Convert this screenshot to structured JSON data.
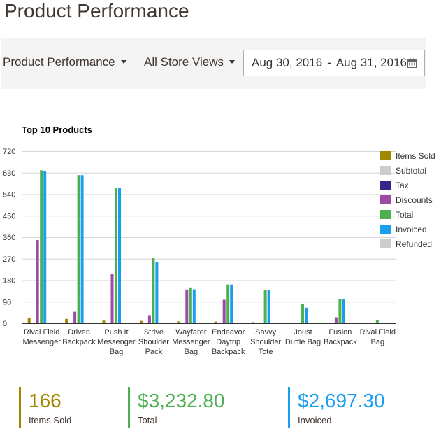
{
  "page": {
    "title": "Product Performance"
  },
  "toolbar": {
    "report_select": "Product Performance",
    "store_select": "All Store Views",
    "date_from": "Aug 30, 2016",
    "date_sep": "-",
    "date_to": "Aug 31, 2016",
    "calendar_icon": "calendar-icon"
  },
  "chart_data": {
    "type": "bar",
    "title": "Top 10 Products",
    "categories": [
      [
        "Rival Field",
        "Messenger"
      ],
      [
        "Driven",
        "Backpack"
      ],
      [
        "Push It",
        "Messenger",
        "Bag"
      ],
      [
        "Strive",
        "Shoulder",
        "Pack"
      ],
      [
        "Wayfarer",
        "Messenger",
        "Bag"
      ],
      [
        "Endeavor",
        "Daytrip",
        "Backpack"
      ],
      [
        "Savvy",
        "Shoulder",
        "Tote"
      ],
      [
        "Joust",
        "Duffle Bag"
      ],
      [
        "Fusion",
        "Backpack"
      ],
      [
        "Rival Field",
        "Bag"
      ]
    ],
    "ylim": [
      0,
      720
    ],
    "yticks": [
      0,
      90,
      180,
      270,
      360,
      450,
      540,
      630,
      720
    ],
    "grid": true,
    "legend_position": "right",
    "series": [
      {
        "name": "Items Sold",
        "color": "#a08700",
        "values": [
          22,
          18,
          11,
          10,
          8,
          7,
          5,
          3,
          3,
          2
        ]
      },
      {
        "name": "Subtotal",
        "color": "#cccccc",
        "values": [
          0,
          0,
          0,
          0,
          0,
          0,
          0,
          0,
          0,
          0
        ]
      },
      {
        "name": "Tax",
        "color": "#31288a",
        "values": [
          0,
          0,
          0,
          0,
          0,
          0,
          0,
          0,
          0,
          0
        ]
      },
      {
        "name": "Discounts",
        "color": "#9c4ca5",
        "values": [
          348,
          48,
          207,
          34,
          141,
          98,
          3,
          0,
          25,
          0
        ]
      },
      {
        "name": "Total",
        "color": "#4caf50",
        "values": [
          640,
          620,
          566,
          272,
          150,
          162,
          138,
          80,
          102,
          12
        ]
      },
      {
        "name": "Invoiced",
        "color": "#1a9fef",
        "values": [
          635,
          620,
          566,
          256,
          142,
          162,
          138,
          65,
          102,
          0
        ]
      },
      {
        "name": "Refunded",
        "color": "#cccccc",
        "values": [
          0,
          0,
          0,
          0,
          0,
          0,
          0,
          0,
          0,
          0
        ]
      }
    ]
  },
  "totals": {
    "items_sold": {
      "value": "166",
      "label": "Items Sold",
      "color": "#a08700"
    },
    "total": {
      "value": "$3,232.80",
      "label": "Total",
      "color": "#4caf50"
    },
    "invoiced": {
      "value": "$2,697.30",
      "label": "Invoiced",
      "color": "#1a9fef"
    }
  }
}
